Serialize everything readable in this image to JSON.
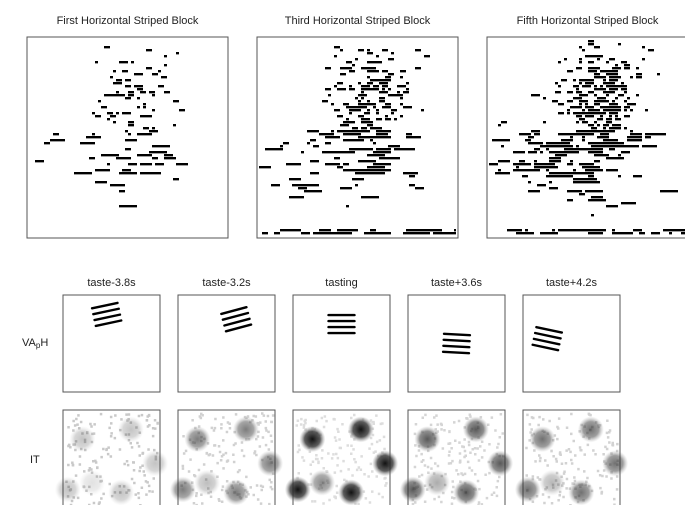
{
  "top_panels": {
    "titles": [
      "First Horizontal Striped Block",
      "Third Horizontal Striped Block",
      "Fifth Horizontal Striped Block"
    ]
  },
  "bottom_panels": {
    "columns": [
      "taste-3.8s",
      "taste-3.2s",
      "tasting",
      "taste+3.6s",
      "taste+4.2s"
    ],
    "row_labels": [
      {
        "text": "VA",
        "subscript": "p",
        "suffix": "H"
      },
      {
        "text": "IT"
      }
    ]
  }
}
